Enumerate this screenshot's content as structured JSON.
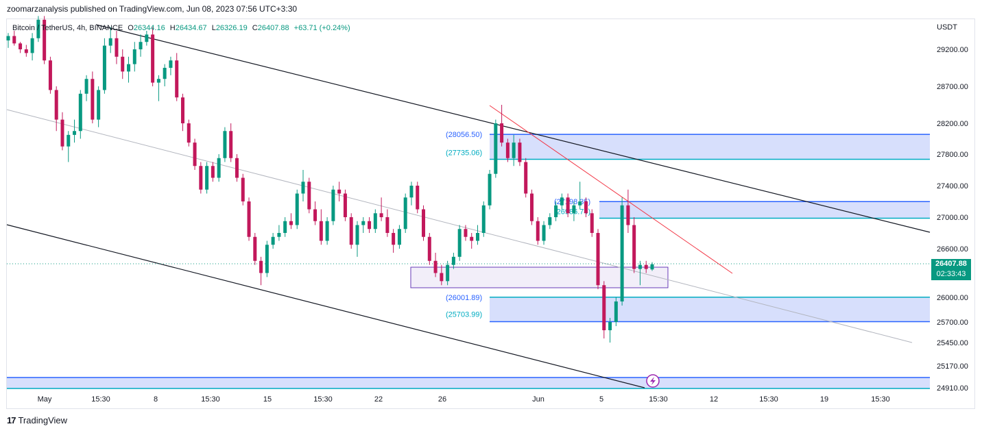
{
  "header": {
    "text": "zoomarzanalysis published on TradingView.com, Jun 08, 2023 07:56 UTC+3:30"
  },
  "legend": {
    "symbol": "Bitcoin / TetherUS, 4h, BINANCE",
    "open_label": "O",
    "open": "26344.16",
    "high_label": "H",
    "high": "26434.67",
    "low_label": "L",
    "low": "26326.19",
    "close_label": "C",
    "close": "26407.88",
    "change": "+63.71 (+0.24%)"
  },
  "currency": "USDT",
  "current_price": {
    "price": "26407.88",
    "countdown": "02:33:43"
  },
  "footer": {
    "logo": "17",
    "brand": "TradingView"
  },
  "colors": {
    "up": "#089981",
    "down": "#c2185b",
    "zone_fill": "#d3dcfc",
    "zone_line": "#2962ff",
    "zone_line_alt": "#00acc1",
    "purple": "#673ab7",
    "trend": "#131722",
    "red_line": "#f23645"
  },
  "chart_data": {
    "type": "candlestick",
    "y_axis_labels": [
      "29200.00",
      "28700.00",
      "28200.00",
      "27800.00",
      "27400.00",
      "27000.00",
      "26600.00",
      "26000.00",
      "25700.00",
      "25450.00",
      "25170.00",
      "24910.00"
    ],
    "x_axis_labels": [
      "May",
      "15:30",
      "8",
      "15:30",
      "15",
      "15:30",
      "22",
      "26",
      "Jun",
      "5",
      "15:30",
      "12",
      "15:30",
      "19",
      "15:30"
    ],
    "zones": [
      {
        "top": 28056.5,
        "bottom": 27735.06,
        "label_top": "(28056.50)",
        "label_bottom": "(27735.06)"
      },
      {
        "top": 27198.35,
        "bottom": 26986.74,
        "label_top": "(27198.35)",
        "label_bottom": "(26986.74)"
      },
      {
        "top": 26001.89,
        "bottom": 25703.99,
        "label_top": "(26001.89)",
        "label_bottom": "(25703.99)"
      }
    ],
    "candles": [
      [
        29320,
        29420,
        29220,
        29380
      ],
      [
        29380,
        29450,
        29250,
        29280
      ],
      [
        29280,
        29300,
        29150,
        29200
      ],
      [
        29200,
        29260,
        29100,
        29150
      ],
      [
        29150,
        29420,
        29050,
        29350
      ],
      [
        29350,
        29650,
        29300,
        29600
      ],
      [
        29600,
        29650,
        29000,
        29050
      ],
      [
        29050,
        29100,
        28600,
        28650
      ],
      [
        28650,
        28700,
        28100,
        28250
      ],
      [
        28250,
        28350,
        27850,
        27900
      ],
      [
        27900,
        28100,
        27700,
        28050
      ],
      [
        28050,
        28250,
        27950,
        28100
      ],
      [
        28100,
        28650,
        28000,
        28600
      ],
      [
        28600,
        28850,
        28500,
        28800
      ],
      [
        28800,
        28900,
        28200,
        28250
      ],
      [
        28250,
        28700,
        28150,
        28650
      ],
      [
        28650,
        29350,
        28600,
        29250
      ],
      [
        29250,
        29500,
        29150,
        29350
      ],
      [
        29350,
        29450,
        29000,
        29100
      ],
      [
        29100,
        29200,
        28800,
        28900
      ],
      [
        28900,
        29100,
        28750,
        29000
      ],
      [
        29000,
        29300,
        28900,
        29200
      ],
      [
        29200,
        29400,
        29100,
        29300
      ],
      [
        29300,
        29450,
        29250,
        29400
      ],
      [
        29400,
        29500,
        28700,
        28750
      ],
      [
        28750,
        28850,
        28500,
        28800
      ],
      [
        28800,
        29000,
        28700,
        28950
      ],
      [
        28950,
        29100,
        28850,
        29050
      ],
      [
        29050,
        29150,
        28500,
        28550
      ],
      [
        28550,
        28600,
        28100,
        28200
      ],
      [
        28200,
        28250,
        27900,
        27950
      ],
      [
        27950,
        28000,
        27600,
        27650
      ],
      [
        27650,
        27700,
        27300,
        27350
      ],
      [
        27350,
        27700,
        27300,
        27650
      ],
      [
        27650,
        27700,
        27450,
        27500
      ],
      [
        27500,
        27800,
        27450,
        27750
      ],
      [
        27750,
        28150,
        27700,
        28100
      ],
      [
        28100,
        28200,
        27700,
        27750
      ],
      [
        27750,
        27800,
        27450,
        27500
      ],
      [
        27500,
        27550,
        27150,
        27200
      ],
      [
        27200,
        27250,
        26700,
        26750
      ],
      [
        26750,
        26800,
        26400,
        26450
      ],
      [
        26450,
        26500,
        26150,
        26300
      ],
      [
        26300,
        26700,
        26250,
        26650
      ],
      [
        26650,
        26800,
        26600,
        26750
      ],
      [
        26750,
        26900,
        26700,
        26800
      ],
      [
        26800,
        27000,
        26750,
        26950
      ],
      [
        26950,
        27050,
        26850,
        26900
      ],
      [
        26900,
        27350,
        26850,
        27300
      ],
      [
        27300,
        27600,
        27200,
        27450
      ],
      [
        27450,
        27500,
        27050,
        27100
      ],
      [
        27100,
        27200,
        26900,
        26950
      ],
      [
        26950,
        27100,
        26650,
        26700
      ],
      [
        26700,
        27000,
        26650,
        26950
      ],
      [
        26950,
        27400,
        26900,
        27350
      ],
      [
        27350,
        27450,
        27200,
        27300
      ],
      [
        27300,
        27350,
        26950,
        27000
      ],
      [
        27000,
        27050,
        26600,
        26650
      ],
      [
        26650,
        26950,
        26500,
        26900
      ],
      [
        26900,
        27000,
        26800,
        26950
      ],
      [
        26950,
        27000,
        26800,
        26850
      ],
      [
        26850,
        27100,
        26800,
        27050
      ],
      [
        27050,
        27250,
        26950,
        27000
      ],
      [
        27000,
        27100,
        26750,
        26800
      ],
      [
        26800,
        26850,
        26550,
        26650
      ],
      [
        26650,
        26900,
        26600,
        26850
      ],
      [
        26850,
        27300,
        26800,
        27250
      ],
      [
        27250,
        27450,
        27150,
        27400
      ],
      [
        27400,
        27450,
        27050,
        27100
      ],
      [
        27100,
        27150,
        26700,
        26750
      ],
      [
        26750,
        26800,
        26400,
        26450
      ],
      [
        26450,
        26550,
        26250,
        26300
      ],
      [
        26300,
        26400,
        26150,
        26200
      ],
      [
        26200,
        26450,
        26150,
        26400
      ],
      [
        26400,
        26550,
        26350,
        26500
      ],
      [
        26500,
        26900,
        26450,
        26850
      ],
      [
        26850,
        26900,
        26700,
        26750
      ],
      [
        26750,
        26800,
        26600,
        26700
      ],
      [
        26700,
        26900,
        26650,
        26800
      ],
      [
        26800,
        27200,
        26750,
        27150
      ],
      [
        27150,
        27600,
        27100,
        27550
      ],
      [
        27550,
        28250,
        27500,
        28200
      ],
      [
        28200,
        28450,
        27900,
        27950
      ],
      [
        27950,
        28000,
        27700,
        27750
      ],
      [
        27750,
        28050,
        27650,
        27950
      ],
      [
        27950,
        28000,
        27650,
        27700
      ],
      [
        27700,
        27750,
        27250,
        27300
      ],
      [
        27300,
        27350,
        26900,
        26950
      ],
      [
        26950,
        27000,
        26650,
        26700
      ],
      [
        26700,
        26950,
        26650,
        26900
      ],
      [
        26900,
        27050,
        26850,
        27000
      ],
      [
        27000,
        27200,
        26950,
        27150
      ],
      [
        27150,
        27300,
        27100,
        27250
      ],
      [
        27250,
        27300,
        27000,
        27050
      ],
      [
        27050,
        27200,
        26950,
        27150
      ],
      [
        27150,
        27450,
        27100,
        27200
      ],
      [
        27200,
        27250,
        27000,
        27050
      ],
      [
        27050,
        27100,
        26750,
        26800
      ],
      [
        26800,
        26850,
        26100,
        26150
      ],
      [
        26150,
        26200,
        25500,
        25600
      ],
      [
        25600,
        25750,
        25450,
        25700
      ],
      [
        25700,
        26000,
        25650,
        25950
      ],
      [
        25950,
        27250,
        25900,
        27150
      ],
      [
        27150,
        27350,
        26800,
        26900
      ],
      [
        26900,
        27000,
        26300,
        26350
      ],
      [
        26350,
        26450,
        26150,
        26400
      ],
      [
        26400,
        26450,
        26300,
        26350
      ],
      [
        26344.16,
        26434.67,
        26326.19,
        26407.88
      ]
    ]
  }
}
